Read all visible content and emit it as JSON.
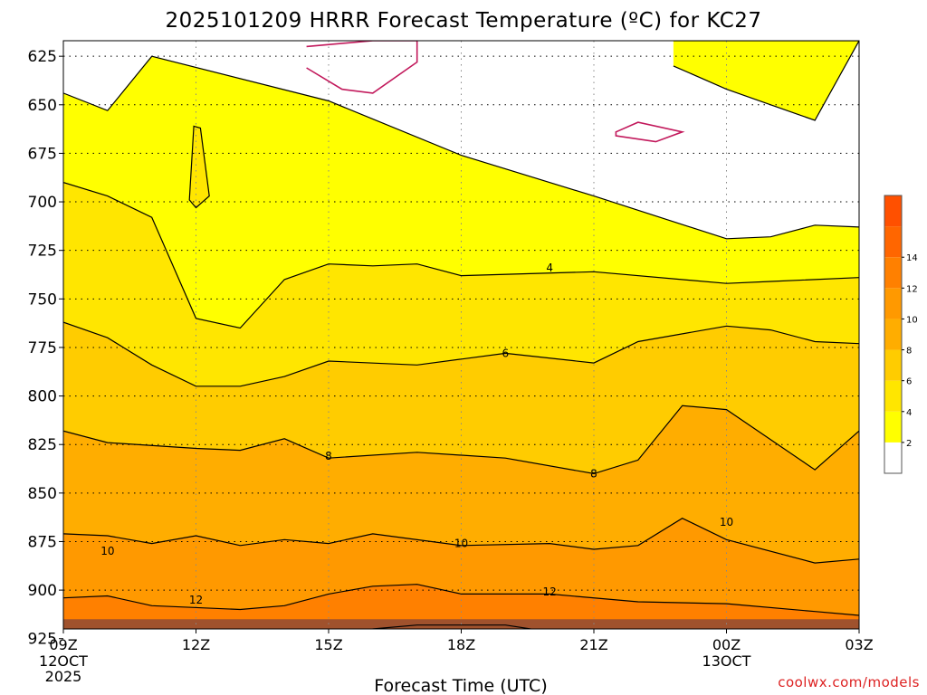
{
  "chart_data": {
    "type": "contour",
    "title": "2025101209 HRRR Forecast Temperature (ºC) for KC27",
    "xlabel": "Forecast Time (UTC)",
    "x_ticks": [
      "09Z",
      "12Z",
      "15Z",
      "18Z",
      "21Z",
      "00Z",
      "03Z"
    ],
    "x_tick_dates": [
      {
        "tick": "09Z",
        "lines": [
          "12OCT",
          "2025"
        ]
      },
      {
        "tick": "00Z",
        "lines": [
          "13OCT"
        ]
      }
    ],
    "x_hours": [
      9,
      12,
      15,
      18,
      21,
      24,
      27
    ],
    "y_ticks": [
      625,
      650,
      675,
      700,
      725,
      750,
      775,
      800,
      825,
      850,
      875,
      900,
      925
    ],
    "ylim": [
      617,
      920
    ],
    "colorbar": {
      "ticks": [
        2,
        4,
        6,
        8,
        10,
        12,
        14
      ],
      "colors": [
        "#ffffff",
        "#ffff00",
        "#ffe600",
        "#ffcc00",
        "#ffad00",
        "#ff9900",
        "#ff8000",
        "#ff6600",
        "#ff5000"
      ]
    },
    "contour_labels": [
      {
        "text": "4",
        "hour": 20.0,
        "pressure": 734
      },
      {
        "text": "6",
        "hour": 19.0,
        "pressure": 778
      },
      {
        "text": "8",
        "hour": 15.0,
        "pressure": 831
      },
      {
        "text": "8",
        "hour": 21.0,
        "pressure": 840
      },
      {
        "text": "10",
        "hour": 10.0,
        "pressure": 880
      },
      {
        "text": "10",
        "hour": 18.0,
        "pressure": 876
      },
      {
        "text": "10",
        "hour": 24.0,
        "pressure": 865
      },
      {
        "text": "12",
        "hour": 12.0,
        "pressure": 905
      },
      {
        "text": "12",
        "hour": 20.0,
        "pressure": 901
      }
    ],
    "isotherms": {
      "t2": [
        [
          9,
          644
        ],
        [
          10,
          653
        ],
        [
          11,
          625
        ],
        [
          15,
          648
        ],
        [
          18,
          676
        ],
        [
          21,
          697
        ],
        [
          24,
          719
        ],
        [
          25,
          718
        ],
        [
          26,
          712
        ],
        [
          27,
          713
        ]
      ],
      "t4": [
        [
          9,
          690
        ],
        [
          10,
          697
        ],
        [
          11,
          708
        ],
        [
          12,
          760
        ],
        [
          13,
          765
        ],
        [
          14,
          740
        ],
        [
          15,
          732
        ],
        [
          16,
          733
        ],
        [
          17,
          732
        ],
        [
          18,
          738
        ],
        [
          21,
          736
        ],
        [
          24,
          742
        ],
        [
          25,
          741
        ],
        [
          27,
          739
        ]
      ],
      "t6": [
        [
          9,
          762
        ],
        [
          10,
          770
        ],
        [
          11,
          784
        ],
        [
          12,
          795
        ],
        [
          13,
          795
        ],
        [
          14,
          790
        ],
        [
          15,
          782
        ],
        [
          17,
          784
        ],
        [
          19,
          778
        ],
        [
          21,
          783
        ],
        [
          22,
          772
        ],
        [
          24,
          764
        ],
        [
          25,
          766
        ],
        [
          26,
          772
        ],
        [
          27,
          773
        ]
      ],
      "t8": [
        [
          9,
          818
        ],
        [
          10,
          824
        ],
        [
          12,
          827
        ],
        [
          13,
          828
        ],
        [
          14,
          822
        ],
        [
          15,
          832
        ],
        [
          17,
          829
        ],
        [
          19,
          832
        ],
        [
          21,
          840
        ],
        [
          22,
          833
        ],
        [
          23,
          805
        ],
        [
          24,
          807
        ],
        [
          26,
          838
        ],
        [
          27,
          818
        ]
      ],
      "t10": [
        [
          9,
          871
        ],
        [
          10,
          872
        ],
        [
          11,
          876
        ],
        [
          12,
          872
        ],
        [
          13,
          877
        ],
        [
          14,
          874
        ],
        [
          15,
          876
        ],
        [
          16,
          871
        ],
        [
          18,
          877
        ],
        [
          20,
          876
        ],
        [
          21,
          879
        ],
        [
          22,
          877
        ],
        [
          23,
          863
        ],
        [
          24,
          874
        ],
        [
          26,
          886
        ],
        [
          27,
          884
        ]
      ],
      "t12": [
        [
          9,
          904
        ],
        [
          10,
          903
        ],
        [
          11,
          908
        ],
        [
          13,
          910
        ],
        [
          14,
          908
        ],
        [
          15,
          902
        ],
        [
          16,
          898
        ],
        [
          17,
          897
        ],
        [
          18,
          902
        ],
        [
          20,
          902
        ],
        [
          22,
          906
        ],
        [
          24,
          907
        ],
        [
          26,
          911
        ],
        [
          27,
          913
        ]
      ],
      "t14": [
        [
          9,
          930
        ],
        [
          15,
          928
        ],
        [
          16,
          920
        ],
        [
          17,
          918
        ],
        [
          19,
          918
        ],
        [
          21,
          925
        ],
        [
          24,
          922
        ],
        [
          27,
          922
        ]
      ]
    },
    "closed_contours": {
      "yellow_lens": [
        [
          11.95,
          661
        ],
        [
          12.1,
          662
        ],
        [
          12.3,
          697
        ],
        [
          12.0,
          703
        ],
        [
          11.85,
          699
        ]
      ],
      "cold_top": [
        [
          14.5,
          620
        ],
        [
          16,
          617
        ],
        [
          17,
          617
        ],
        [
          17.0,
          628
        ],
        [
          16.0,
          644
        ],
        [
          15.3,
          642
        ],
        [
          14.5,
          631
        ]
      ],
      "cold_mid": [
        [
          21.5,
          664
        ],
        [
          22.0,
          659
        ],
        [
          23.0,
          664
        ],
        [
          22.4,
          669
        ],
        [
          21.5,
          666
        ]
      ],
      "top_right": [
        [
          22.8,
          617
        ],
        [
          27,
          617
        ],
        [
          26.0,
          658
        ],
        [
          25.0,
          650
        ],
        [
          24.0,
          642
        ],
        [
          22.8,
          630
        ]
      ]
    },
    "surface_band": {
      "from_pressure": 915,
      "color": "#a0522d"
    },
    "credit": "coolwx.com/models"
  }
}
